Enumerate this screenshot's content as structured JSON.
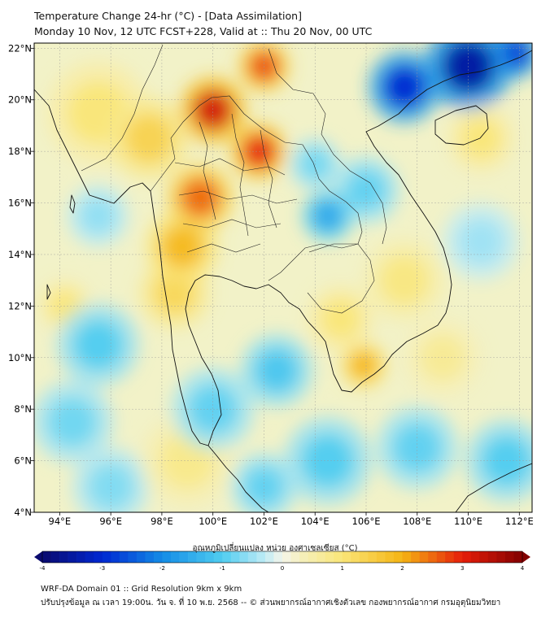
{
  "header": {
    "title_line1": "Temperature Change 24-hr (°C) - [Data Assimilation]",
    "title_line2": "Monday 10 Nov, 12 UTC FCST+228, Valid at :: Thu 20 Nov, 00 UTC"
  },
  "map": {
    "lon_range": [
      93,
      112.5
    ],
    "lat_range": [
      4,
      22.2
    ],
    "lon_ticks": [
      {
        "value": 94,
        "label": "94°E"
      },
      {
        "value": 96,
        "label": "96°E"
      },
      {
        "value": 98,
        "label": "98°E"
      },
      {
        "value": 100,
        "label": "100°E"
      },
      {
        "value": 102,
        "label": "102°E"
      },
      {
        "value": 104,
        "label": "104°E"
      },
      {
        "value": 106,
        "label": "106°E"
      },
      {
        "value": 108,
        "label": "108°E"
      },
      {
        "value": 110,
        "label": "110°E"
      },
      {
        "value": 112,
        "label": "112°E"
      }
    ],
    "lat_ticks": [
      {
        "value": 22,
        "label": "22°N"
      },
      {
        "value": 20,
        "label": "20°N"
      },
      {
        "value": 18,
        "label": "18°N"
      },
      {
        "value": 16,
        "label": "16°N"
      },
      {
        "value": 14,
        "label": "14°N"
      },
      {
        "value": 12,
        "label": "12°N"
      },
      {
        "value": 10,
        "label": "10°N"
      },
      {
        "value": 8,
        "label": "8°N"
      },
      {
        "value": 6,
        "label": "6°N"
      },
      {
        "value": 4,
        "label": "4°N"
      }
    ],
    "background_color": "#f2f2c8",
    "anomalies": [
      {
        "lon": 100.0,
        "lat": 19.6,
        "value": 3.2,
        "r": 1.3
      },
      {
        "lon": 101.8,
        "lat": 18.0,
        "value": 3.0,
        "r": 1.1
      },
      {
        "lon": 102.0,
        "lat": 21.3,
        "value": 2.7,
        "r": 1.0
      },
      {
        "lon": 99.5,
        "lat": 16.2,
        "value": 2.5,
        "r": 1.3
      },
      {
        "lon": 98.8,
        "lat": 14.3,
        "value": 1.9,
        "r": 1.4
      },
      {
        "lon": 98.5,
        "lat": 12.5,
        "value": 1.3,
        "r": 1.4
      },
      {
        "lon": 97.5,
        "lat": 18.5,
        "value": 1.4,
        "r": 1.6
      },
      {
        "lon": 95.5,
        "lat": 19.5,
        "value": 1.0,
        "r": 2.0
      },
      {
        "lon": 105.9,
        "lat": 9.7,
        "value": 2.0,
        "r": 0.9
      },
      {
        "lon": 105.0,
        "lat": 11.5,
        "value": 1.0,
        "r": 1.3
      },
      {
        "lon": 109.0,
        "lat": 10.0,
        "value": 0.7,
        "r": 1.5
      },
      {
        "lon": 110.5,
        "lat": 18.5,
        "value": 1.0,
        "r": 1.3
      },
      {
        "lon": 107.5,
        "lat": 13.0,
        "value": 0.9,
        "r": 1.6
      },
      {
        "lon": 99.0,
        "lat": 6.0,
        "value": 0.8,
        "r": 1.8
      },
      {
        "lon": 94.2,
        "lat": 12.0,
        "value": 1.0,
        "r": 1.0
      },
      {
        "lon": 110.0,
        "lat": 21.3,
        "value": -3.5,
        "r": 1.7
      },
      {
        "lon": 107.5,
        "lat": 20.5,
        "value": -3.0,
        "r": 1.4
      },
      {
        "lon": 111.8,
        "lat": 21.8,
        "value": -3.0,
        "r": 1.0
      },
      {
        "lon": 104.5,
        "lat": 15.5,
        "value": -1.6,
        "r": 1.0
      },
      {
        "lon": 106.0,
        "lat": 16.5,
        "value": -0.9,
        "r": 1.3
      },
      {
        "lon": 104.0,
        "lat": 17.5,
        "value": -0.8,
        "r": 1.0
      },
      {
        "lon": 102.5,
        "lat": 9.5,
        "value": -1.1,
        "r": 1.4
      },
      {
        "lon": 100.0,
        "lat": 8.0,
        "value": -0.9,
        "r": 1.6
      },
      {
        "lon": 95.5,
        "lat": 10.5,
        "value": -1.0,
        "r": 1.6
      },
      {
        "lon": 94.5,
        "lat": 7.5,
        "value": -0.8,
        "r": 1.6
      },
      {
        "lon": 104.5,
        "lat": 6.0,
        "value": -1.0,
        "r": 1.7
      },
      {
        "lon": 102.0,
        "lat": 5.0,
        "value": -0.9,
        "r": 1.3
      },
      {
        "lon": 108.0,
        "lat": 6.5,
        "value": -0.9,
        "r": 1.6
      },
      {
        "lon": 111.5,
        "lat": 6.0,
        "value": -1.0,
        "r": 1.6
      },
      {
        "lon": 110.5,
        "lat": 14.5,
        "value": -0.5,
        "r": 1.5
      },
      {
        "lon": 95.5,
        "lat": 15.5,
        "value": -0.6,
        "r": 1.2
      },
      {
        "lon": 96.0,
        "lat": 5.0,
        "value": -0.7,
        "r": 1.5
      }
    ]
  },
  "colorbar": {
    "label": "อุณหภูมิเปลี่ยนแปลง หน่วย องศาเซลเซียส (°C)",
    "min": -4,
    "max": 4,
    "ticks": [
      "-4",
      "-3",
      "-2",
      "-1",
      "0",
      "1",
      "2",
      "3",
      "4"
    ]
  },
  "footer": {
    "line1": "WRF-DA Domain 01 :: Grid Resolution 9km x 9km",
    "line2": "ปรับปรุงข้อมูล ณ เวลา 19:00น. วัน จ. ที่ 10 พ.ย. 2568 -- © ส่วนพยากรณ์อากาศเชิงตัวเลข กองพยากรณ์อากาศ กรมอุตุนิยมวิทยา"
  }
}
